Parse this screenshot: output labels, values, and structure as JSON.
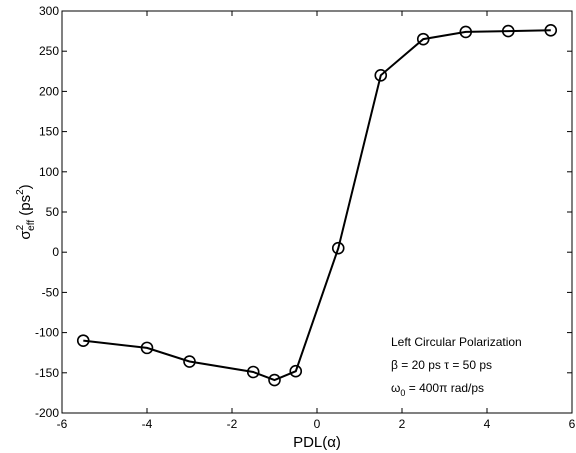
{
  "chart_data": {
    "type": "line",
    "xlabel": "PDL(α)",
    "ylabel": {
      "sigma": "σ",
      "sup": "2",
      "sub": "eff",
      "rest": " (ps",
      "rest_sup": "2",
      "close": ")"
    },
    "xlim": [
      -6,
      6
    ],
    "ylim": [
      -200,
      300
    ],
    "xticks": [
      "-6",
      "-4",
      "-2",
      "0",
      "2",
      "4",
      "6"
    ],
    "yticks": [
      "-200",
      "-150",
      "-100",
      "-50",
      "0",
      "50",
      "100",
      "150",
      "200",
      "250",
      "300"
    ],
    "grid": false,
    "marker": "circle-open",
    "color": "#000000",
    "series": [
      {
        "x": [
          -5.5,
          -4,
          -3,
          -1.5,
          -1,
          -0.5,
          0.5,
          1.5,
          2.5,
          3.5,
          4.5,
          5.5
        ],
        "y": [
          -110,
          -119,
          -136,
          -149,
          -159,
          -148,
          5,
          220,
          265,
          274,
          275,
          276
        ]
      }
    ],
    "annotations": {
      "line1": "Left Circular  Polarization",
      "line2": "β = 20 ps   τ = 50 ps",
      "line3_main": "ω",
      "line3_sub": "0",
      "line3_rest": " = 400π rad/ps"
    }
  }
}
